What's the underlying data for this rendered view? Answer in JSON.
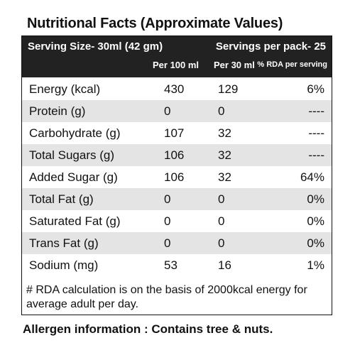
{
  "header": {
    "title": "Nutritional Facts (Approximate Values)"
  },
  "table": {
    "serving_size": "Serving Size-  30ml (42 gm)",
    "servings_per_pack": "Servings per pack- 25",
    "columns": [
      "Per 100 ml",
      "Per 30 ml",
      "% RDA per serving"
    ],
    "rows": [
      [
        "Energy (kcal)",
        430,
        129,
        "6%"
      ],
      [
        "Protein (g)",
        0,
        0,
        "----"
      ],
      [
        "Carbohydrate (g)",
        107,
        32,
        "----"
      ],
      [
        "Total Sugars (g)",
        106,
        32,
        "----"
      ],
      [
        "Added Sugar (g)",
        106,
        32,
        "64%"
      ],
      [
        "Total Fat (g)",
        0,
        0,
        "0%"
      ],
      [
        "Saturated Fat (g)",
        0,
        0,
        "0%"
      ],
      [
        "Trans Fat (g)",
        0,
        0,
        "0%"
      ],
      [
        "Sodium (mg)",
        53,
        16,
        "1%"
      ]
    ],
    "footnote": "# RDA calculation is on the basis of 2000kcal energy for average adult per day."
  },
  "allergen": "Allergen information : Contains tree & nuts."
}
